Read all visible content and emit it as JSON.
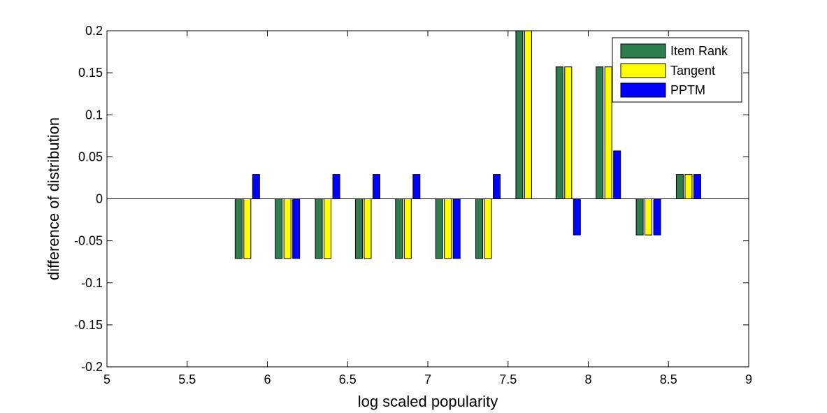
{
  "chart_data": {
    "type": "bar",
    "title": "",
    "xlabel": "log scaled popularity",
    "ylabel": "difference of distribution",
    "xlim": [
      5,
      9
    ],
    "ylim": [
      -0.2,
      0.2
    ],
    "xticks": [
      "5",
      "5.5",
      "6",
      "6.5",
      "7",
      "7.5",
      "8",
      "8.5",
      "9"
    ],
    "yticks": [
      "0.2",
      "0.15",
      "0.1",
      "0.05",
      "0",
      "-0.05",
      "-0.1",
      "-0.15",
      "-0.2"
    ],
    "grid": false,
    "legend_position": "top-right",
    "categories": [
      5.875,
      6.125,
      6.375,
      6.625,
      6.875,
      7.125,
      7.375,
      7.625,
      7.875,
      8.125,
      8.375,
      8.625
    ],
    "series": [
      {
        "name": "Item Rank",
        "color": "#2e7d4f",
        "values": [
          -0.071,
          -0.071,
          -0.071,
          -0.071,
          -0.071,
          -0.071,
          -0.071,
          0.2,
          0.157,
          0.157,
          -0.043,
          0.029
        ]
      },
      {
        "name": "Tangent",
        "color": "#ffff00",
        "values": [
          -0.071,
          -0.071,
          -0.071,
          -0.071,
          -0.071,
          -0.071,
          -0.071,
          0.2,
          0.157,
          0.157,
          -0.043,
          0.029
        ]
      },
      {
        "name": "PPTM",
        "color": "#0000ff",
        "values": [
          0.029,
          -0.071,
          0.029,
          0.029,
          0.029,
          -0.071,
          0.029,
          0.0,
          -0.043,
          0.057,
          -0.043,
          0.029
        ]
      }
    ]
  }
}
